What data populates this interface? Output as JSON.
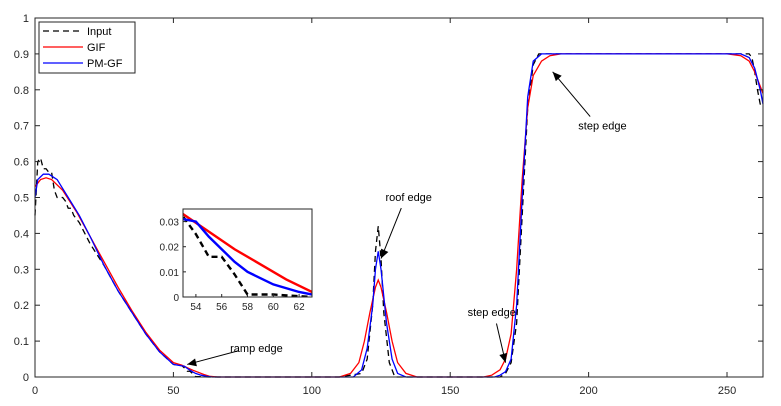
{
  "chart_data": {
    "type": "line",
    "title": "",
    "xlabel": "",
    "ylabel": "",
    "xlim": [
      0,
      263
    ],
    "ylim": [
      0,
      1
    ],
    "xticks": [
      "0",
      "50",
      "100",
      "150",
      "200",
      "250"
    ],
    "yticks": [
      "0",
      "0.1",
      "0.2",
      "0.3",
      "0.4",
      "0.5",
      "0.6",
      "0.7",
      "0.8",
      "0.9",
      "1"
    ],
    "legend_position": "top-left",
    "grid": false,
    "series": [
      {
        "name": "Input",
        "color": "#000000",
        "style": "dashed",
        "points": [
          [
            0,
            0.45
          ],
          [
            1,
            0.6
          ],
          [
            2,
            0.61
          ],
          [
            3,
            0.58
          ],
          [
            4,
            0.58
          ],
          [
            5,
            0.57
          ],
          [
            6,
            0.57
          ],
          [
            7,
            0.52
          ],
          [
            8,
            0.5
          ],
          [
            9,
            0.5
          ],
          [
            10,
            0.5
          ],
          [
            11,
            0.49
          ],
          [
            12,
            0.47
          ],
          [
            13,
            0.47
          ],
          [
            14,
            0.45
          ],
          [
            16,
            0.43
          ],
          [
            18,
            0.4
          ],
          [
            20,
            0.37
          ],
          [
            25,
            0.31
          ],
          [
            30,
            0.24
          ],
          [
            35,
            0.18
          ],
          [
            40,
            0.12
          ],
          [
            45,
            0.07
          ],
          [
            50,
            0.035
          ],
          [
            53,
            0.032
          ],
          [
            54,
            0.025
          ],
          [
            55,
            0.016
          ],
          [
            56,
            0.016
          ],
          [
            57,
            0.009
          ],
          [
            58,
            0.001
          ],
          [
            60,
            0.001
          ],
          [
            63,
            0.0
          ],
          [
            110,
            0.0
          ],
          [
            118,
            0.01
          ],
          [
            120,
            0.05
          ],
          [
            122,
            0.2
          ],
          [
            123,
            0.35
          ],
          [
            124,
            0.42
          ],
          [
            125,
            0.33
          ],
          [
            126,
            0.18
          ],
          [
            128,
            0.04
          ],
          [
            130,
            0.0
          ],
          [
            168,
            0.0
          ],
          [
            170,
            0.01
          ],
          [
            172,
            0.04
          ],
          [
            174,
            0.15
          ],
          [
            176,
            0.45
          ],
          [
            178,
            0.75
          ],
          [
            180,
            0.87
          ],
          [
            182,
            0.9
          ],
          [
            184,
            0.9
          ],
          [
            200,
            0.9
          ],
          [
            250,
            0.9
          ],
          [
            258,
            0.9
          ],
          [
            259,
            0.89
          ],
          [
            260,
            0.85
          ],
          [
            261,
            0.8
          ],
          [
            262,
            0.76
          ],
          [
            263,
            0.75
          ]
        ]
      },
      {
        "name": "GIF",
        "color": "#ff0000",
        "style": "solid",
        "points": [
          [
            0,
            0.53
          ],
          [
            2,
            0.55
          ],
          [
            4,
            0.555
          ],
          [
            6,
            0.55
          ],
          [
            10,
            0.52
          ],
          [
            15,
            0.46
          ],
          [
            20,
            0.39
          ],
          [
            25,
            0.32
          ],
          [
            30,
            0.25
          ],
          [
            35,
            0.185
          ],
          [
            40,
            0.125
          ],
          [
            45,
            0.075
          ],
          [
            50,
            0.04
          ],
          [
            53,
            0.033
          ],
          [
            55,
            0.026
          ],
          [
            57,
            0.019
          ],
          [
            59,
            0.013
          ],
          [
            61,
            0.007
          ],
          [
            63,
            0.002
          ],
          [
            66,
            0.0
          ],
          [
            110,
            0.0
          ],
          [
            114,
            0.01
          ],
          [
            117,
            0.04
          ],
          [
            119,
            0.1
          ],
          [
            121,
            0.18
          ],
          [
            123,
            0.25
          ],
          [
            124,
            0.27
          ],
          [
            125,
            0.25
          ],
          [
            127,
            0.18
          ],
          [
            129,
            0.1
          ],
          [
            131,
            0.04
          ],
          [
            134,
            0.01
          ],
          [
            138,
            0.0
          ],
          [
            162,
            0.0
          ],
          [
            165,
            0.005
          ],
          [
            168,
            0.02
          ],
          [
            170,
            0.05
          ],
          [
            172,
            0.12
          ],
          [
            174,
            0.3
          ],
          [
            176,
            0.55
          ],
          [
            178,
            0.75
          ],
          [
            180,
            0.84
          ],
          [
            183,
            0.88
          ],
          [
            186,
            0.895
          ],
          [
            190,
            0.9
          ],
          [
            250,
            0.9
          ],
          [
            255,
            0.895
          ],
          [
            258,
            0.88
          ],
          [
            260,
            0.85
          ],
          [
            262,
            0.81
          ],
          [
            263,
            0.79
          ]
        ]
      },
      {
        "name": "PM-GF",
        "color": "#0000ff",
        "style": "solid",
        "points": [
          [
            0,
            0.5
          ],
          [
            1,
            0.55
          ],
          [
            3,
            0.565
          ],
          [
            5,
            0.565
          ],
          [
            8,
            0.55
          ],
          [
            12,
            0.5
          ],
          [
            16,
            0.45
          ],
          [
            20,
            0.39
          ],
          [
            25,
            0.31
          ],
          [
            30,
            0.24
          ],
          [
            35,
            0.18
          ],
          [
            40,
            0.12
          ],
          [
            45,
            0.07
          ],
          [
            50,
            0.035
          ],
          [
            53,
            0.031
          ],
          [
            54,
            0.03
          ],
          [
            55,
            0.024
          ],
          [
            56,
            0.019
          ],
          [
            57,
            0.014
          ],
          [
            58,
            0.01
          ],
          [
            60,
            0.005
          ],
          [
            62,
            0.002
          ],
          [
            64,
            0.0
          ],
          [
            115,
            0.0
          ],
          [
            118,
            0.02
          ],
          [
            120,
            0.08
          ],
          [
            122,
            0.2
          ],
          [
            123,
            0.3
          ],
          [
            124,
            0.35
          ],
          [
            125,
            0.3
          ],
          [
            127,
            0.15
          ],
          [
            129,
            0.05
          ],
          [
            131,
            0.01
          ],
          [
            134,
            0.0
          ],
          [
            166,
            0.0
          ],
          [
            168,
            0.005
          ],
          [
            170,
            0.015
          ],
          [
            172,
            0.05
          ],
          [
            174,
            0.2
          ],
          [
            176,
            0.5
          ],
          [
            178,
            0.78
          ],
          [
            180,
            0.88
          ],
          [
            183,
            0.9
          ],
          [
            190,
            0.9
          ],
          [
            255,
            0.9
          ],
          [
            258,
            0.89
          ],
          [
            260,
            0.86
          ],
          [
            262,
            0.8
          ],
          [
            263,
            0.76
          ]
        ]
      }
    ],
    "annotations": [
      {
        "text": "ramp edge",
        "x": 80,
        "y": 0.07,
        "arrow_to": [
          55,
          0.035
        ]
      },
      {
        "text": "roof edge",
        "x": 135,
        "y": 0.49,
        "arrow_to": [
          125,
          0.33
        ]
      },
      {
        "text": "step edge",
        "x": 165,
        "y": 0.17,
        "arrow_to": [
          170,
          0.04
        ]
      },
      {
        "text": "step edge",
        "x": 205,
        "y": 0.69,
        "arrow_to": [
          187,
          0.85
        ]
      }
    ],
    "inset": {
      "xlim": [
        53,
        63
      ],
      "ylim": [
        0,
        0.035
      ],
      "xticks": [
        "54",
        "56",
        "58",
        "60",
        "62"
      ],
      "yticks": [
        "0",
        "0.01",
        "0.02",
        "0.03"
      ]
    }
  }
}
